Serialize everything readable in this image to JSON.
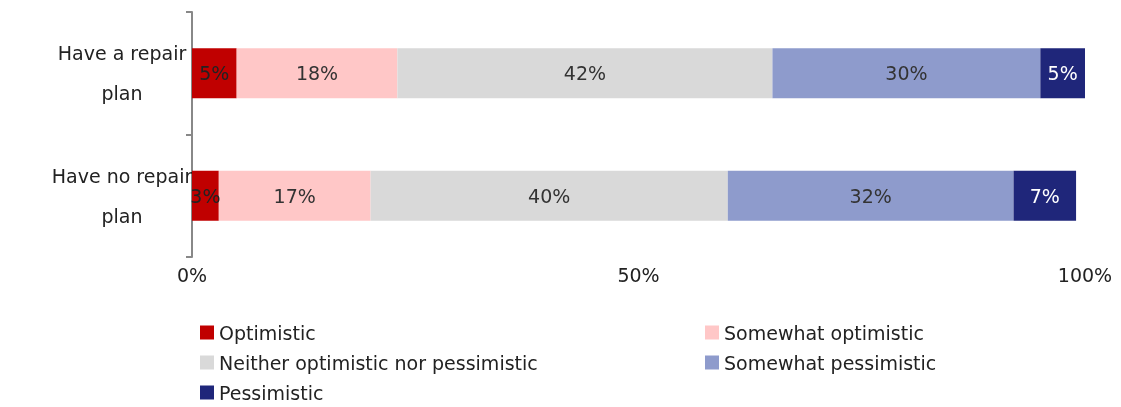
{
  "chart_data": {
    "type": "bar",
    "orientation": "horizontal",
    "stacked": true,
    "categories": [
      "Have a repair\nplan",
      "Have no repair\nplan"
    ],
    "series": [
      {
        "name": "Optimistic",
        "color": "#c00000",
        "values": [
          5,
          3
        ],
        "value_labels": [
          "5%",
          "3%"
        ]
      },
      {
        "name": "Somewhat optimistic",
        "color": "#ffc7c7",
        "values": [
          18,
          17
        ],
        "value_labels": [
          "18%",
          "17%"
        ]
      },
      {
        "name": "Neither optimistic nor pessimistic",
        "color": "#d9d9d9",
        "values": [
          42,
          40
        ],
        "value_labels": [
          "42%",
          "40%"
        ]
      },
      {
        "name": "Somewhat pessimistic",
        "color": "#8e9bcc",
        "values": [
          30,
          32
        ],
        "value_labels": [
          "30%",
          "32%"
        ]
      },
      {
        "name": "Pessimistic",
        "color": "#1f267a",
        "values": [
          5,
          7
        ],
        "value_labels": [
          "5%",
          "7%"
        ]
      }
    ],
    "xlim": [
      0,
      100
    ],
    "xticks": [
      {
        "value": 0,
        "label": "0%"
      },
      {
        "value": 50,
        "label": "50%"
      },
      {
        "value": 100,
        "label": "100%"
      }
    ],
    "grid": false,
    "legend": "bottom"
  }
}
